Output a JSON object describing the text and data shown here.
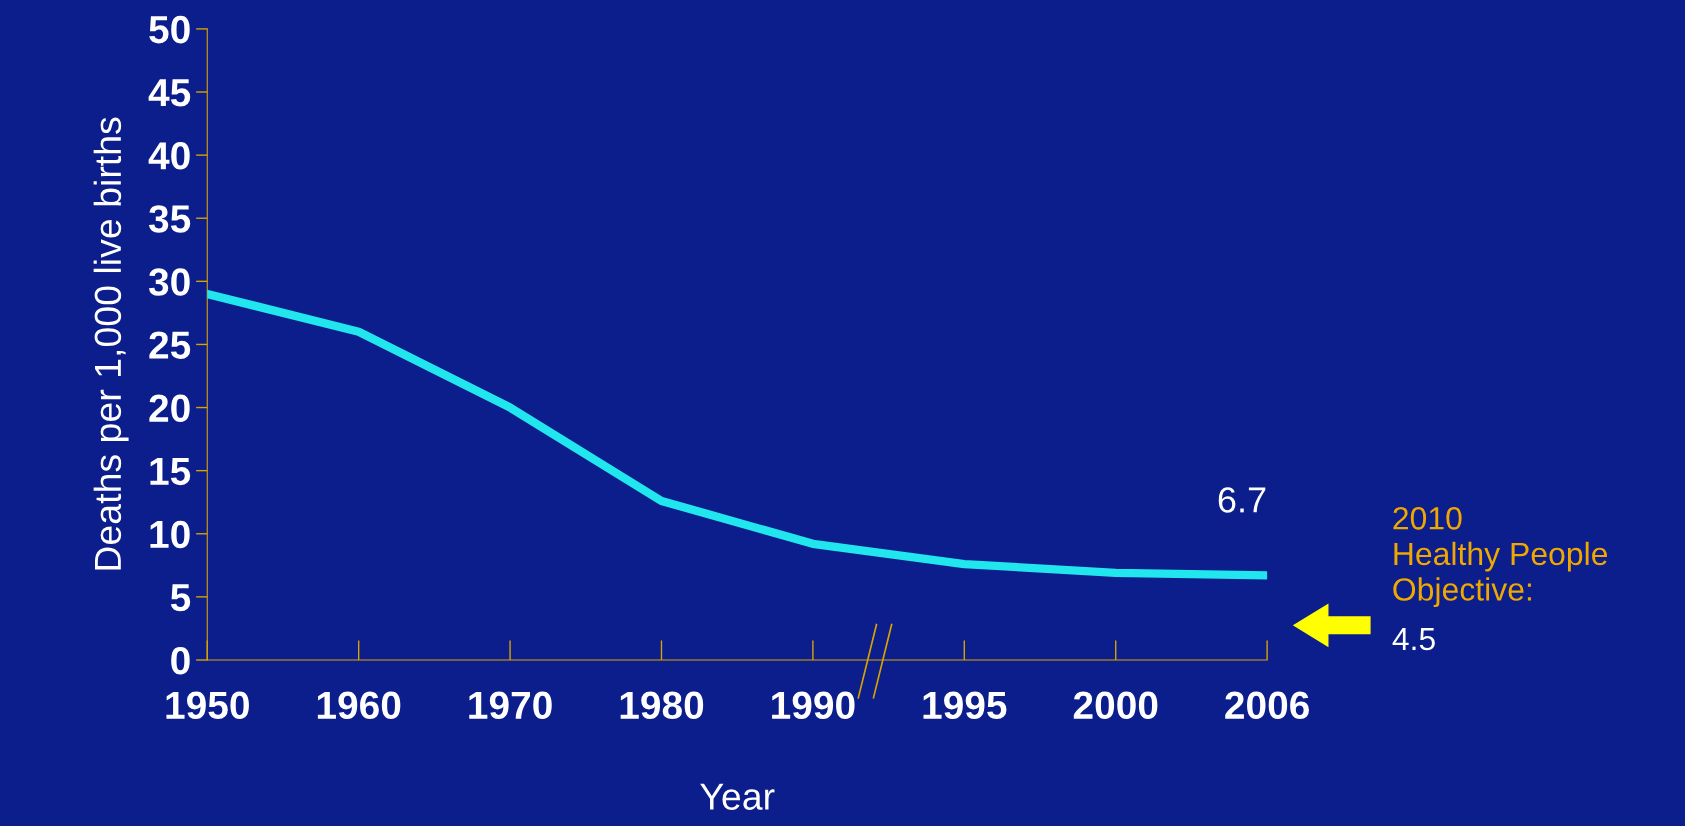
{
  "chart_data": {
    "type": "line",
    "xlabel": "Year",
    "ylabel": "Deaths per 1,000 live births",
    "categories": [
      "1950",
      "1960",
      "1970",
      "1980",
      "1990",
      "1995",
      "2000",
      "2006"
    ],
    "values": [
      29,
      26,
      20,
      12.6,
      9.2,
      7.6,
      6.9,
      6.7
    ],
    "color": "#22e6ee",
    "ylim": [
      0,
      50
    ],
    "yticks": [
      0,
      5,
      10,
      15,
      20,
      25,
      30,
      35,
      40,
      45,
      50
    ],
    "annotations": [
      {
        "text": "6.7",
        "x": "2006",
        "y": 6.7
      },
      "2010\nHealthy People\nObjective:",
      "4.5"
    ]
  }
}
